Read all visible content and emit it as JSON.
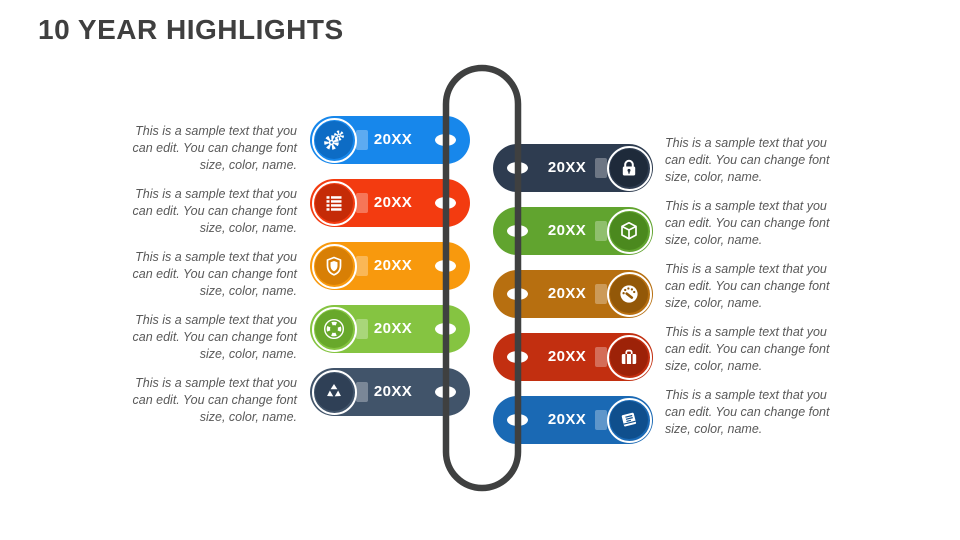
{
  "slide": {
    "title": "10 YEAR HIGHLIGHTS"
  },
  "colors": {
    "background": "#FFFFFF",
    "title_text": "#3F3F3F",
    "body_text": "#595959",
    "connector": "#3F4040",
    "year_text": "#FFFFFF"
  },
  "timeline": {
    "items": [
      {
        "side": "left",
        "year": "20XX",
        "icon": "gears-icon",
        "color": "#1787EB",
        "icon_circle_color": "#0D6CC5",
        "description": "This is a sample text that you can edit. You can change font size, color, name."
      },
      {
        "side": "left",
        "year": "20XX",
        "icon": "list-icon",
        "color": "#F33B10",
        "icon_circle_color": "#C52B07",
        "description": "This is a sample text that you can edit. You can change font size, color, name."
      },
      {
        "side": "left",
        "year": "20XX",
        "icon": "shield-icon",
        "color": "#F8990D",
        "icon_circle_color": "#D87F05",
        "description": "This is a sample text that you can edit. You can change font size, color, name."
      },
      {
        "side": "left",
        "year": "20XX",
        "icon": "lifebuoy-icon",
        "color": "#85C441",
        "icon_circle_color": "#68A82B",
        "description": "This is a sample text that you can edit. You can change font size, color, name."
      },
      {
        "side": "left",
        "year": "20XX",
        "icon": "recycle-icon",
        "color": "#41546A",
        "icon_circle_color": "#2F4056",
        "description": "This is a sample text that you can edit. You can change font size, color, name."
      },
      {
        "side": "right",
        "year": "20XX",
        "icon": "lock-icon",
        "color": "#2E3C50",
        "icon_circle_color": "#1E2A3A",
        "description": "This is a sample text that you can edit. You can change font size, color, name."
      },
      {
        "side": "right",
        "year": "20XX",
        "icon": "cube-icon",
        "color": "#61A42F",
        "icon_circle_color": "#4B891E",
        "description": "This is a sample text that you can edit. You can change font size, color, name."
      },
      {
        "side": "right",
        "year": "20XX",
        "icon": "gauge-icon",
        "color": "#B76F10",
        "icon_circle_color": "#935808",
        "description": "This is a sample text that you can edit. You can change font size, color, name."
      },
      {
        "side": "right",
        "year": "20XX",
        "icon": "briefcase-icon",
        "color": "#C22F10",
        "icon_circle_color": "#9D2208",
        "description": "This is a sample text that you can edit. You can change font size, color, name."
      },
      {
        "side": "right",
        "year": "20XX",
        "icon": "book-icon",
        "color": "#1A69B4",
        "icon_circle_color": "#0F4F8D",
        "description": "This is a sample text that you can edit. You can change font size, color, name."
      }
    ]
  }
}
